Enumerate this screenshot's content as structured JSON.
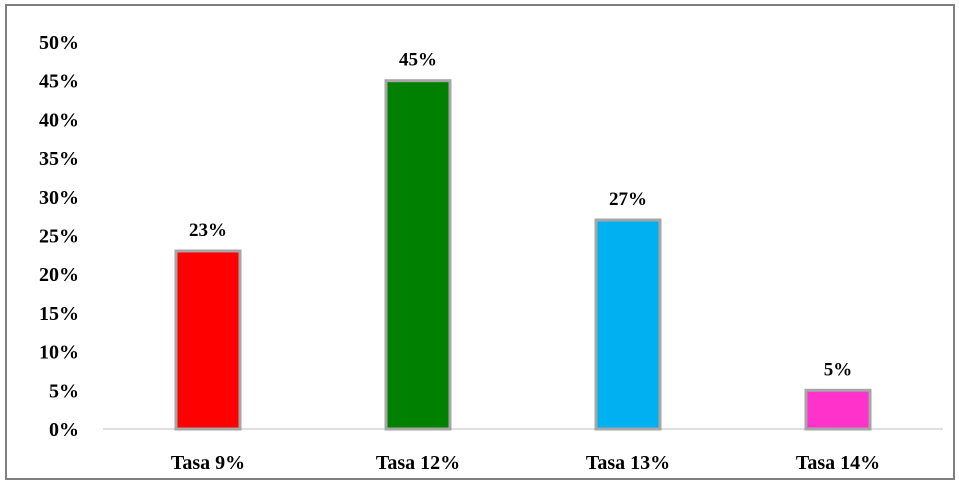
{
  "chart_data": {
    "type": "bar",
    "categories": [
      "Tasa 9%",
      "Tasa 12%",
      "Tasa 13%",
      "Tasa 14%"
    ],
    "values": [
      23,
      45,
      27,
      5
    ],
    "data_labels": [
      "23%",
      "45%",
      "27%",
      "5%"
    ],
    "colors": [
      "#ff0000",
      "#008000",
      "#00b0f0",
      "#ff33cc"
    ],
    "bar_border_color": "#a6a6a6",
    "ylim": [
      0,
      50
    ],
    "yticks": [
      0,
      5,
      10,
      15,
      20,
      25,
      30,
      35,
      40,
      45,
      50
    ],
    "ytick_labels": [
      "0%",
      "5%",
      "10%",
      "15%",
      "20%",
      "25%",
      "30%",
      "35%",
      "40%",
      "45%",
      "50%"
    ],
    "grid": false,
    "title": "",
    "xlabel": "",
    "ylabel": ""
  }
}
